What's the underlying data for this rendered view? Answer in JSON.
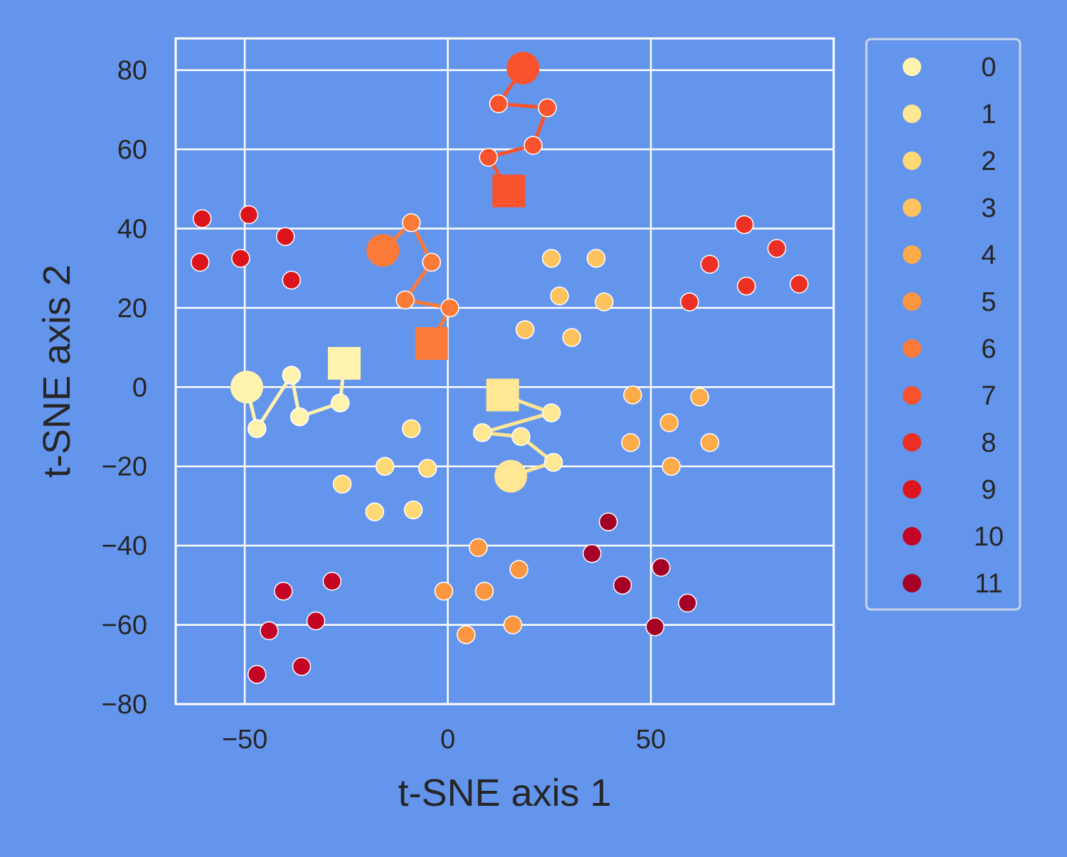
{
  "chart_data": {
    "type": "scatter",
    "xlabel": "t-SNE axis 1",
    "ylabel": "t-SNE axis 2",
    "xlim": [
      -67,
      95
    ],
    "ylim": [
      -80,
      88
    ],
    "xticks": [
      -50,
      0,
      50
    ],
    "xtick_labels": [
      "−50",
      "0",
      "50"
    ],
    "yticks": [
      -80,
      -60,
      -40,
      -20,
      0,
      20,
      40,
      60,
      80
    ],
    "ytick_labels": [
      "−80",
      "−60",
      "−40",
      "−20",
      "0",
      "20",
      "40",
      "60",
      "80"
    ],
    "grid": true,
    "legend_position": "right-outside-top",
    "legend": [
      {
        "label": "0",
        "color": "#FFF3AE"
      },
      {
        "label": "1",
        "color": "#FFE794"
      },
      {
        "label": "2",
        "color": "#FED976"
      },
      {
        "label": "3",
        "color": "#FEC35F"
      },
      {
        "label": "4",
        "color": "#FEAB49"
      },
      {
        "label": "5",
        "color": "#FD9640"
      },
      {
        "label": "6",
        "color": "#FC7A37"
      },
      {
        "label": "7",
        "color": "#F9532D"
      },
      {
        "label": "8",
        "color": "#EC3023"
      },
      {
        "label": "9",
        "color": "#DC151D"
      },
      {
        "label": "10",
        "color": "#C30424"
      },
      {
        "label": "11",
        "color": "#A50026"
      }
    ],
    "series": [
      {
        "name": "0",
        "color": "#FFF3AE",
        "points": []
      },
      {
        "name": "1",
        "color": "#FFE794",
        "points": []
      },
      {
        "name": "2",
        "color": "#FED976",
        "points": [
          [
            -9,
            -10.5
          ],
          [
            -15.5,
            -20
          ],
          [
            -5,
            -20.5
          ],
          [
            -26,
            -24.5
          ],
          [
            -18,
            -31.5
          ],
          [
            -8.5,
            -31
          ]
        ]
      },
      {
        "name": "3",
        "color": "#FEC35F",
        "points": [
          [
            25.5,
            32.5
          ],
          [
            36.5,
            32.5
          ],
          [
            27.5,
            23
          ],
          [
            38.5,
            21.5
          ],
          [
            19,
            14.5
          ],
          [
            30.5,
            12.5
          ]
        ]
      },
      {
        "name": "4",
        "color": "#FEAB49",
        "points": [
          [
            45.5,
            -2
          ],
          [
            62,
            -2.5
          ],
          [
            54.5,
            -9
          ],
          [
            45,
            -14
          ],
          [
            64.5,
            -14
          ],
          [
            55,
            -20
          ]
        ]
      },
      {
        "name": "5",
        "color": "#FD9640",
        "points": [
          [
            7.5,
            -40.5
          ],
          [
            17.5,
            -46
          ],
          [
            -1,
            -51.5
          ],
          [
            9,
            -51.5
          ],
          [
            4.5,
            -62.5
          ],
          [
            16,
            -60
          ]
        ]
      },
      {
        "name": "6",
        "color": "#FC7A37",
        "points": []
      },
      {
        "name": "7",
        "color": "#F9532D",
        "points": []
      },
      {
        "name": "8",
        "color": "#EC3023",
        "points": [
          [
            73,
            41
          ],
          [
            81,
            35
          ],
          [
            64.5,
            31
          ],
          [
            73.5,
            25.5
          ],
          [
            86.5,
            26
          ],
          [
            59.5,
            21.5
          ]
        ]
      },
      {
        "name": "9",
        "color": "#DC151D",
        "points": [
          [
            -60.5,
            42.5
          ],
          [
            -49,
            43.5
          ],
          [
            -40,
            38
          ],
          [
            -61,
            31.5
          ],
          [
            -51,
            32.5
          ],
          [
            -38.5,
            27
          ]
        ]
      },
      {
        "name": "10",
        "color": "#C30424",
        "points": [
          [
            -40.5,
            -51.5
          ],
          [
            -28.5,
            -49
          ],
          [
            -44,
            -61.5
          ],
          [
            -32.5,
            -59
          ],
          [
            -47,
            -72.5
          ],
          [
            -36,
            -70.5
          ]
        ]
      },
      {
        "name": "11",
        "color": "#A50026",
        "points": [
          [
            39.5,
            -34
          ],
          [
            35.5,
            -42
          ],
          [
            52.5,
            -45.5
          ],
          [
            43,
            -50
          ],
          [
            59,
            -54.5
          ],
          [
            51,
            -60.5
          ]
        ]
      }
    ],
    "trajectories": [
      {
        "group": "0",
        "color": "#FFF3AE",
        "start": [
          -49.5,
          0
        ],
        "path": [
          [
            -47,
            -10.5
          ],
          [
            -38.5,
            3
          ],
          [
            -36.5,
            -7.5
          ],
          [
            -26.5,
            -4
          ]
        ],
        "end": [
          -25.5,
          6
        ]
      },
      {
        "group": "1",
        "color": "#FFE794",
        "start": [
          15.5,
          -22.5
        ],
        "path": [
          [
            26,
            -19
          ],
          [
            18,
            -12.5
          ],
          [
            8.5,
            -11.5
          ],
          [
            25.5,
            -6.5
          ]
        ],
        "end": [
          13.5,
          -2
        ]
      },
      {
        "group": "6",
        "color": "#FC7A37",
        "start": [
          -16,
          34.5
        ],
        "path": [
          [
            -9,
            41.5
          ],
          [
            -4,
            31.5
          ],
          [
            -10.5,
            22
          ],
          [
            0.5,
            20
          ]
        ],
        "end": [
          -4,
          11
        ]
      },
      {
        "group": "7",
        "color": "#F9532D",
        "start": [
          18.5,
          80.5
        ],
        "path": [
          [
            12.5,
            71.5
          ],
          [
            24.5,
            70.5
          ],
          [
            21,
            61
          ],
          [
            10,
            58
          ]
        ],
        "end": [
          15,
          49.5
        ]
      }
    ]
  }
}
